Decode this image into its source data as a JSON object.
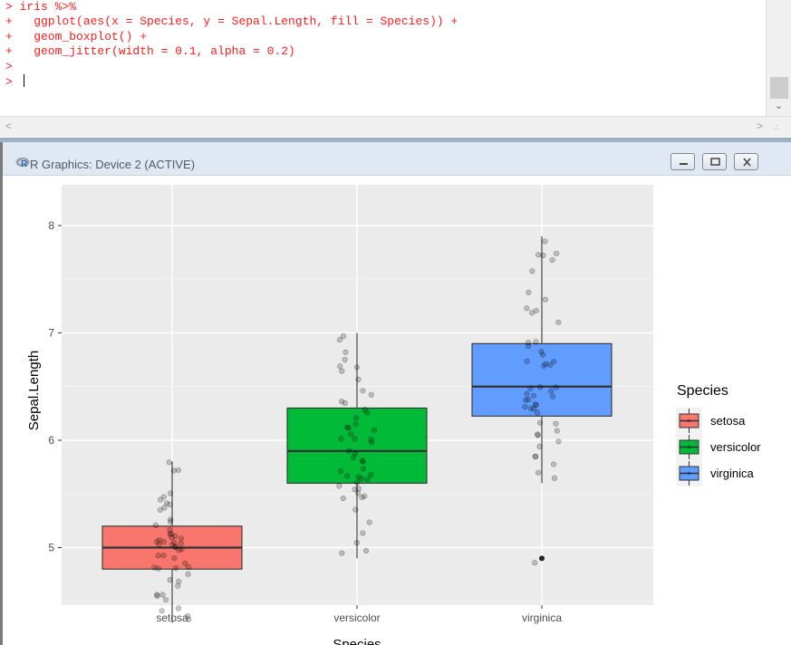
{
  "console": {
    "lines": [
      "> iris %>%",
      "+   ggplot(aes(x = Species, y = Sepal.Length, fill = Species)) +",
      "+   geom_boxplot() +",
      "+   geom_jitter(width = 0.1, alpha = 0.2)",
      ">",
      "> "
    ]
  },
  "graphics_window": {
    "title": "R Graphics: Device 2 (ACTIVE)",
    "buttons": [
      "minimize",
      "maximize",
      "close"
    ]
  },
  "chart_data": {
    "type": "boxplot",
    "xlabel": "Species",
    "ylabel": "Sepal.Length",
    "categories": [
      "setosa",
      "versicolor",
      "virginica"
    ],
    "ylim": [
      4.15,
      8.05
    ],
    "yticks": [
      5,
      6,
      7,
      8
    ],
    "grid": true,
    "legend": {
      "title": "Species",
      "position": "right",
      "entries": [
        "setosa",
        "versicolor",
        "virginica"
      ]
    },
    "colors": {
      "setosa": "#f8766d",
      "versicolor": "#00ba38",
      "virginica": "#619cff"
    },
    "boxes": [
      {
        "name": "setosa",
        "min": 4.3,
        "q1": 4.8,
        "median": 5.0,
        "q3": 5.2,
        "max": 5.8,
        "outliers": []
      },
      {
        "name": "versicolor",
        "min": 4.9,
        "q1": 5.6,
        "median": 5.9,
        "q3": 6.3,
        "max": 7.0,
        "outliers": []
      },
      {
        "name": "virginica",
        "min": 5.6,
        "q1": 6.225,
        "median": 6.5,
        "q3": 6.9,
        "max": 7.9,
        "outliers": [
          4.9
        ]
      }
    ],
    "jitter": [
      {
        "name": "setosa",
        "values": [
          5.1,
          4.9,
          4.7,
          4.6,
          5.0,
          5.4,
          4.6,
          5.0,
          4.4,
          4.9,
          5.4,
          4.8,
          4.8,
          4.3,
          5.8,
          5.7,
          5.4,
          5.1,
          5.7,
          5.1,
          5.4,
          5.1,
          4.6,
          5.1,
          4.8,
          5.0,
          5.0,
          5.2,
          5.2,
          4.7,
          4.8,
          5.4,
          5.2,
          5.5,
          4.9,
          5.0,
          5.5,
          4.9,
          4.4,
          5.1,
          5.0,
          4.5,
          4.4,
          5.0,
          5.1,
          4.8,
          5.1,
          4.6,
          5.3,
          5.0
        ]
      },
      {
        "name": "versicolor",
        "values": [
          7.0,
          6.4,
          6.9,
          5.5,
          6.5,
          5.7,
          6.3,
          4.9,
          6.6,
          5.2,
          5.0,
          5.9,
          6.0,
          6.1,
          5.6,
          6.7,
          5.6,
          5.8,
          6.2,
          5.6,
          5.9,
          6.1,
          6.3,
          6.1,
          6.4,
          6.6,
          6.8,
          6.7,
          6.0,
          5.7,
          5.5,
          5.5,
          5.8,
          6.0,
          5.4,
          6.0,
          6.7,
          6.3,
          5.6,
          5.5,
          5.5,
          6.1,
          5.8,
          5.0,
          5.6,
          5.7,
          5.7,
          6.2,
          5.1,
          5.7
        ]
      },
      {
        "name": "virginica",
        "values": [
          6.3,
          5.8,
          7.1,
          6.3,
          6.5,
          7.6,
          4.9,
          7.3,
          6.7,
          7.2,
          6.5,
          6.4,
          6.8,
          5.7,
          5.8,
          6.4,
          6.5,
          7.7,
          7.7,
          6.0,
          6.9,
          5.6,
          7.7,
          6.3,
          6.7,
          7.2,
          6.2,
          6.1,
          6.4,
          7.2,
          7.4,
          7.9,
          6.4,
          6.3,
          6.1,
          7.7,
          6.3,
          6.4,
          6.0,
          6.9,
          6.7,
          6.9,
          5.8,
          6.8,
          6.7,
          6.7,
          6.3,
          6.5,
          6.2,
          5.9
        ]
      }
    ]
  }
}
